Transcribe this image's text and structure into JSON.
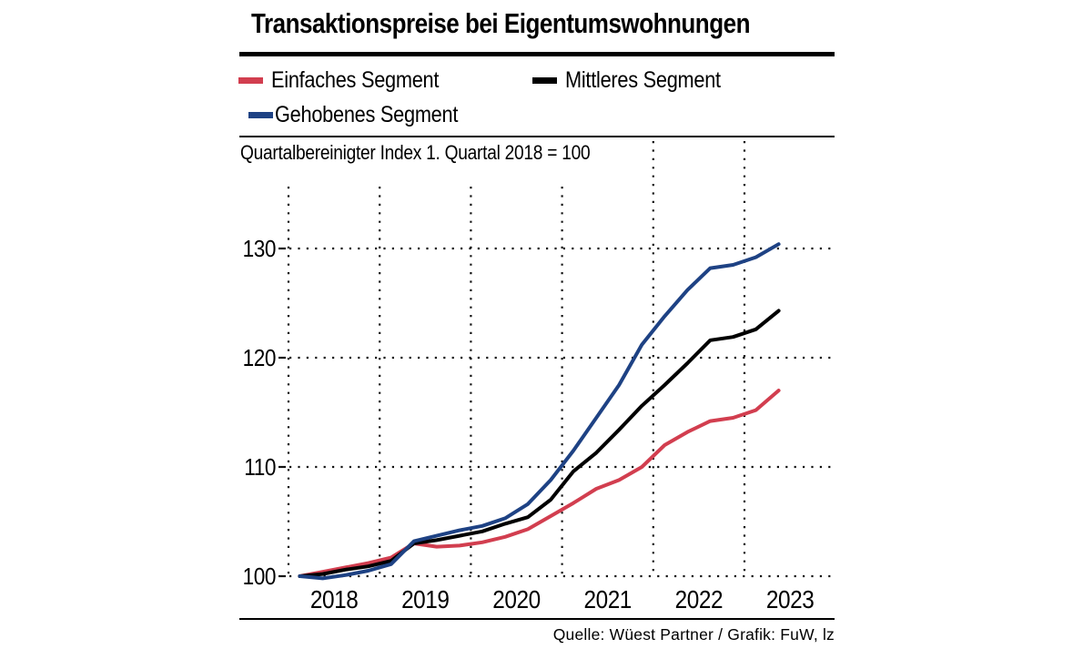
{
  "title": "Transaktionspreise bei Eigentumswohnungen",
  "subtitle": "Quartalbereinigter Index 1. Quartal 2018 = 100",
  "source": "Quelle: Wüest Partner / Grafik: FuW, lz",
  "colors": {
    "einfaches": "#d23e4f",
    "mittleres": "#000000",
    "gehobenes": "#1e4284",
    "grid": "#111111"
  },
  "legend": {
    "items": [
      {
        "label": "Einfaches Segment",
        "color_key": "einfaches"
      },
      {
        "label": "Mittleres Segment",
        "color_key": "mittleres"
      },
      {
        "label": "Gehobenes Segment",
        "color_key": "gehobenes"
      }
    ]
  },
  "chart_data": {
    "type": "line",
    "title": "Transaktionspreise bei Eigentumswohnungen",
    "subtitle": "Quartalbereinigter Index 1. Quartal 2018 = 100",
    "index_base": "Q1 2018 = 100",
    "grid": "dotted",
    "legend_position": "top",
    "x_axis": {
      "unit": "quarterly data, yearly ticks",
      "tick_labels": [
        "2018",
        "2019",
        "2020",
        "2021",
        "2022",
        "2023"
      ]
    },
    "y_axis": {
      "ticks": [
        100,
        110,
        120,
        130
      ],
      "range": [
        100,
        135.5
      ]
    },
    "quarters": [
      "2018Q1",
      "2018Q2",
      "2018Q3",
      "2018Q4",
      "2019Q1",
      "2019Q2",
      "2019Q3",
      "2019Q4",
      "2020Q1",
      "2020Q2",
      "2020Q3",
      "2020Q4",
      "2021Q1",
      "2021Q2",
      "2021Q3",
      "2021Q4",
      "2022Q1",
      "2022Q2",
      "2022Q3",
      "2022Q4",
      "2023Q1",
      "2023Q2"
    ],
    "series": [
      {
        "name": "Einfaches Segment",
        "color": "#d23e4f",
        "values": [
          100,
          100.4,
          100.8,
          101.2,
          101.7,
          103.0,
          102.7,
          102.8,
          103.1,
          103.6,
          104.3,
          105.5,
          106.7,
          108.0,
          108.8,
          110.0,
          112.0,
          113.2,
          114.2,
          114.5,
          115.2,
          117.0
        ]
      },
      {
        "name": "Mittleres Segment",
        "color": "#000000",
        "values": [
          100,
          100.2,
          100.6,
          100.9,
          101.4,
          103.0,
          103.3,
          103.7,
          104.1,
          104.8,
          105.4,
          107.0,
          109.6,
          111.3,
          113.4,
          115.6,
          117.5,
          119.5,
          121.6,
          121.9,
          122.6,
          124.3
        ]
      },
      {
        "name": "Gehobenes Segment",
        "color": "#1e4284",
        "values": [
          100,
          99.8,
          100.1,
          100.5,
          101.1,
          103.2,
          103.7,
          104.2,
          104.6,
          105.3,
          106.6,
          108.8,
          111.5,
          114.5,
          117.5,
          121.2,
          123.8,
          126.2,
          128.2,
          128.5,
          129.2,
          130.4
        ]
      }
    ]
  }
}
